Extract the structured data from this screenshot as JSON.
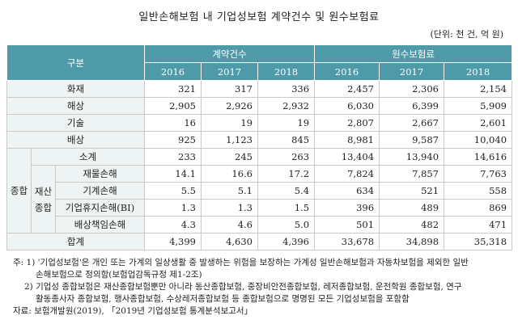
{
  "title": "일반손해보험 내 기업성보험 계약건수 및 원수보험료",
  "unit": "(단위: 천 건, 억 원)",
  "header": {
    "category": "구분",
    "group_contracts": "계약건수",
    "group_premium": "원수보험료",
    "years": [
      "2016",
      "2017",
      "2018",
      "2016",
      "2017",
      "2018"
    ]
  },
  "rows": {
    "fire": {
      "label": "화재",
      "values": [
        "321",
        "317",
        "336",
        "2,457",
        "2,306",
        "2,154"
      ]
    },
    "marine": {
      "label": "해상",
      "values": [
        "2,905",
        "2,926",
        "2,932",
        "6,030",
        "6,399",
        "5,909"
      ]
    },
    "technical": {
      "label": "기술",
      "values": [
        "16",
        "19",
        "19",
        "2,807",
        "2,667",
        "2,601"
      ]
    },
    "liability": {
      "label": "배상",
      "values": [
        "925",
        "1,123",
        "845",
        "8,981",
        "9,587",
        "10,040"
      ]
    },
    "comp_label": "종합",
    "property_label": "재산종합",
    "comp_subtotal": {
      "label": "소계",
      "values": [
        "233",
        "245",
        "263",
        "13,404",
        "13,940",
        "14,616"
      ]
    },
    "property_damage": {
      "label": "재물손해",
      "values": [
        "14.1",
        "16.6",
        "17.2",
        "7,824",
        "7,857",
        "7,763"
      ]
    },
    "machinery": {
      "label": "기계손해",
      "values": [
        "5.5",
        "5.1",
        "5.4",
        "634",
        "521",
        "558"
      ]
    },
    "business_interruption": {
      "label": "기업휴지손해(BI)",
      "values": [
        "1.3",
        "1.3",
        "1.5",
        "396",
        "489",
        "869"
      ]
    },
    "liability_damage": {
      "label": "배상책임손해",
      "values": [
        "4.3",
        "4.6",
        "5.0",
        "501",
        "482",
        "471"
      ]
    },
    "total": {
      "label": "합계",
      "values": [
        "4,399",
        "4,630",
        "4,396",
        "33,678",
        "34,898",
        "35,318"
      ]
    }
  },
  "notes": {
    "n1_a": "주: 1) '기업성보험'은 개인 또는 가계의 일상생활 중 발생하는 위험을 보장하는 가계성 일반손해보험과 자동차보험을 제외한 일반",
    "n1_b": "손해보험으로 정의함(보험업감독규정 제1-2조)",
    "n2_a": "2) 기업성 종합보험은 재산종합보험뿐만 아니라 동산종합보험, 중장비안전종합보험, 레저종합보험, 운전학원 종합보험, 연구",
    "n2_b": "활동종사자 종합보험, 행사종합보험, 수상레저종합보험 등 종합보험으로 명명된 모든 기업성보험을 포함함",
    "source": "자료: 보험개발원(2019), 「2019년 기업성보험 통계분석보고서」"
  }
}
